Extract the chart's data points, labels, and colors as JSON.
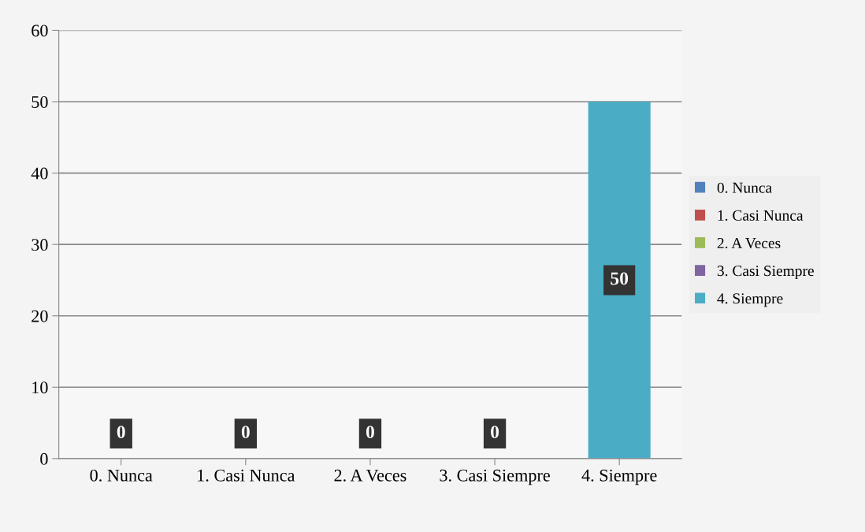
{
  "chart_data": {
    "type": "bar",
    "categories": [
      "0. Nunca",
      "1. Casi Nunca",
      "2. A Veces",
      "3. Casi Siempre",
      "4. Siempre"
    ],
    "series": [
      {
        "name": "0. Nunca",
        "color": "#4f81bd",
        "values": [
          0,
          null,
          null,
          null,
          null
        ]
      },
      {
        "name": "1. Casi Nunca",
        "color": "#c0504d",
        "values": [
          null,
          0,
          null,
          null,
          null
        ]
      },
      {
        "name": "2. A Veces",
        "color": "#9bbb59",
        "values": [
          null,
          null,
          0,
          null,
          null
        ]
      },
      {
        "name": "3. Casi Siempre",
        "color": "#8064a2",
        "values": [
          null,
          null,
          null,
          0,
          null
        ]
      },
      {
        "name": "4. Siempre",
        "color": "#4bacc6",
        "values": [
          null,
          null,
          null,
          null,
          50
        ]
      }
    ],
    "stacked": true,
    "ylim": [
      0,
      60
    ],
    "yticks": [
      0,
      10,
      20,
      30,
      40,
      50,
      60
    ],
    "grid": "y",
    "legend": "right",
    "data_labels": true
  }
}
